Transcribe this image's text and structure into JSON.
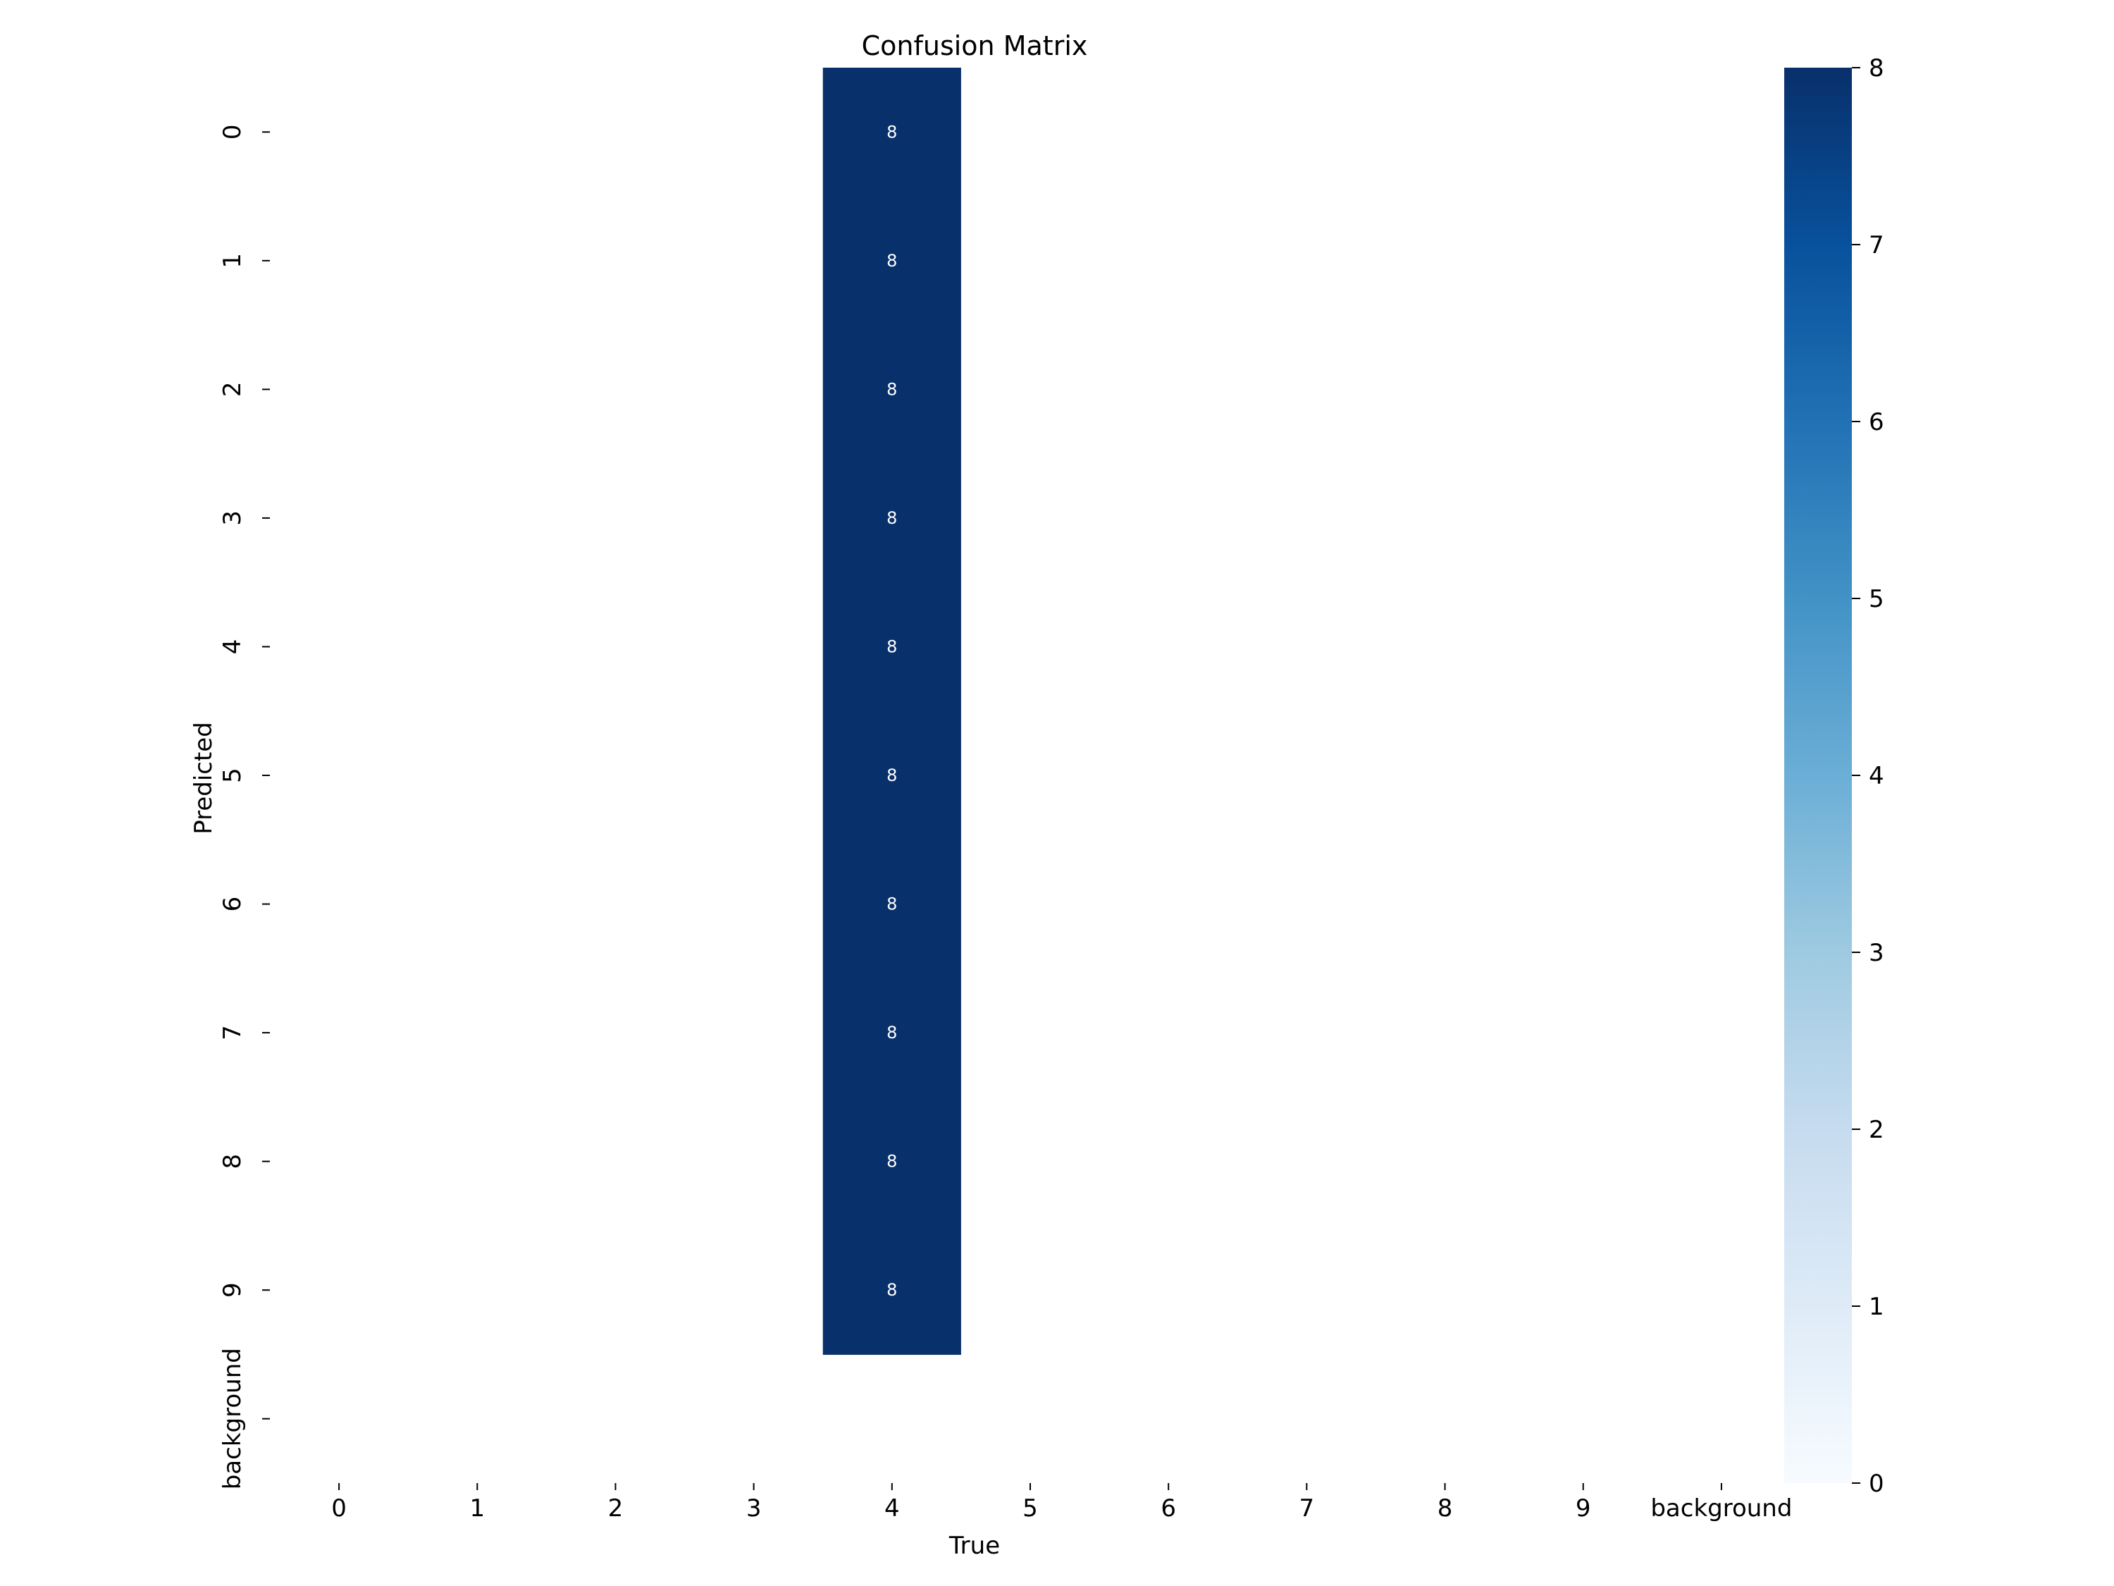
{
  "chart_data": {
    "type": "heatmap",
    "title": "Confusion Matrix",
    "xlabel": "True",
    "ylabel": "Predicted",
    "x_categories": [
      "0",
      "1",
      "2",
      "3",
      "4",
      "5",
      "6",
      "7",
      "8",
      "9",
      "background"
    ],
    "y_categories": [
      "0",
      "1",
      "2",
      "3",
      "4",
      "5",
      "6",
      "7",
      "8",
      "9",
      "background"
    ],
    "cells": [
      {
        "row": "0",
        "col": "4",
        "value": 8
      },
      {
        "row": "1",
        "col": "4",
        "value": 8
      },
      {
        "row": "2",
        "col": "4",
        "value": 8
      },
      {
        "row": "3",
        "col": "4",
        "value": 8
      },
      {
        "row": "4",
        "col": "4",
        "value": 8
      },
      {
        "row": "5",
        "col": "4",
        "value": 8
      },
      {
        "row": "6",
        "col": "4",
        "value": 8
      },
      {
        "row": "7",
        "col": "4",
        "value": 8
      },
      {
        "row": "8",
        "col": "4",
        "value": 8
      },
      {
        "row": "9",
        "col": "4",
        "value": 8
      }
    ],
    "empty_cells": "blank",
    "colormap": "Blues",
    "colorbar": {
      "range": [
        0,
        8
      ],
      "ticks": [
        "0",
        "1",
        "2",
        "3",
        "4",
        "5",
        "6",
        "7",
        "8"
      ],
      "colors": [
        "#f7fbff",
        "#deebf7",
        "#c6dbef",
        "#9ecae1",
        "#6baed6",
        "#4292c6",
        "#2171b5",
        "#08519c",
        "#08306b"
      ]
    },
    "legend": "colorbar-right",
    "grid": false
  }
}
